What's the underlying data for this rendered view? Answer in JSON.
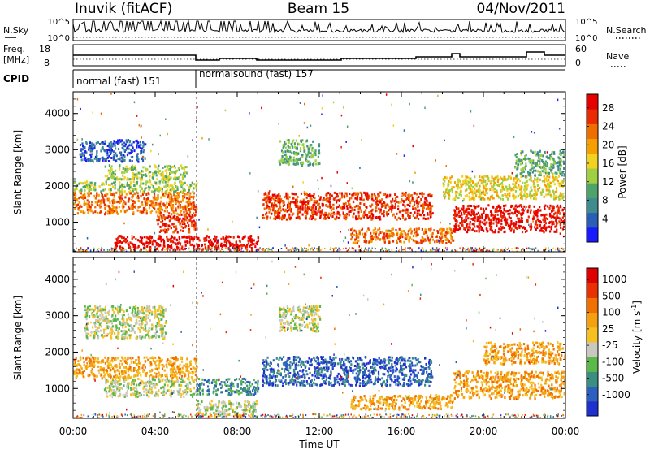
{
  "header": {
    "station": "Inuvik (fitACF)",
    "beam": "Beam 15",
    "date": "04/Nov/2011"
  },
  "strip_labels": {
    "nsky": "N.Sky",
    "nsky_ticks": [
      "10^5",
      "10^0"
    ],
    "nsearch": "N.Search",
    "nsearch_ticks": [
      "10^5",
      "10^0"
    ],
    "freq_l1": "Freq.",
    "freq_l2": "[MHz]",
    "freq_ticks": [
      "18",
      "8"
    ],
    "nave": "Nave",
    "nave_ticks": [
      "60",
      "0"
    ],
    "cpid": "CPID",
    "cpid_segments": [
      {
        "label": "normal (fast) 151",
        "start_hour": 0,
        "end_hour": 6
      },
      {
        "label": "normalsound (fast) 157",
        "start_hour": 6,
        "end_hour": 24
      }
    ]
  },
  "time_axis": {
    "label": "Time UT",
    "ticks": [
      "00:00",
      "04:00",
      "08:00",
      "12:00",
      "16:00",
      "20:00",
      "00:00"
    ]
  },
  "chart_data": [
    {
      "type": "heatmap",
      "panel": "power",
      "ylabel": "Slant Range [km]",
      "xlim": [
        0,
        24
      ],
      "ylim": [
        180,
        4600
      ],
      "yticks": [
        1000,
        2000,
        3000,
        4000
      ],
      "colorbar": {
        "label": "Power [dB]",
        "ticks": [
          "4",
          "8",
          "12",
          "16",
          "20",
          "24",
          "28"
        ],
        "colors": [
          "#1a1aff",
          "#2b5fb5",
          "#3f8c8f",
          "#4ea36a",
          "#9fd042",
          "#f3d21f",
          "#f5a000",
          "#f06d00",
          "#ea2a00",
          "#e60000"
        ]
      },
      "regions": [
        {
          "t0": 0.0,
          "t1": 6.0,
          "r0": 1250,
          "r1": 1850,
          "level": 7
        },
        {
          "t0": 0.0,
          "t1": 6.0,
          "r0": 1850,
          "r1": 2150,
          "level": 4
        },
        {
          "t0": 1.5,
          "t1": 5.5,
          "r0": 2200,
          "r1": 2600,
          "level": 4
        },
        {
          "t0": 0.3,
          "t1": 3.5,
          "r0": 2700,
          "r1": 3300,
          "level": 1
        },
        {
          "t0": 4.0,
          "t1": 6.0,
          "r0": 750,
          "r1": 1250,
          "level": 8
        },
        {
          "t0": 2.0,
          "t1": 9.0,
          "r0": 250,
          "r1": 650,
          "level": 9
        },
        {
          "t0": 9.2,
          "t1": 17.5,
          "r0": 1100,
          "r1": 1850,
          "level": 8
        },
        {
          "t0": 10.0,
          "t1": 12.0,
          "r0": 2600,
          "r1": 3300,
          "level": 3
        },
        {
          "t0": 13.5,
          "t1": 18.5,
          "r0": 450,
          "r1": 850,
          "level": 7
        },
        {
          "t0": 18.5,
          "t1": 24.0,
          "r0": 750,
          "r1": 1500,
          "level": 9
        },
        {
          "t0": 18.0,
          "t1": 24.0,
          "r0": 1650,
          "r1": 2300,
          "level": 5
        },
        {
          "t0": 21.5,
          "t1": 24.0,
          "r0": 2300,
          "r1": 3000,
          "level": 3
        }
      ]
    },
    {
      "type": "heatmap",
      "panel": "velocity",
      "ylabel": "Slant Range [km]",
      "xlim": [
        0,
        24
      ],
      "ylim": [
        180,
        4600
      ],
      "yticks": [
        1000,
        2000,
        3000,
        4000
      ],
      "colorbar": {
        "label": "Velocity [m s",
        "label_exponent": "-1",
        "label_close": "]",
        "ticks": [
          "1000",
          "500",
          "100",
          "25",
          "-25",
          "-100",
          "-500",
          "-1000"
        ],
        "colors": [
          "#1f2fd0",
          "#2b60c0",
          "#3a8f80",
          "#5cb84a",
          "#c8c8c0",
          "#f5c020",
          "#f5a010",
          "#f07000",
          "#e83000",
          "#e00000"
        ]
      },
      "regions": [
        {
          "t0": 0.0,
          "t1": 6.0,
          "r0": 1300,
          "r1": 1900,
          "level": 6
        },
        {
          "t0": 0.5,
          "t1": 4.5,
          "r0": 2400,
          "r1": 3300,
          "level": 4
        },
        {
          "t0": 1.5,
          "t1": 6.0,
          "r0": 800,
          "r1": 1300,
          "level": 4
        },
        {
          "t0": 6.0,
          "t1": 9.0,
          "r0": 250,
          "r1": 700,
          "level": 4
        },
        {
          "t0": 6.0,
          "t1": 9.0,
          "r0": 850,
          "r1": 1300,
          "level": 2
        },
        {
          "t0": 9.2,
          "t1": 17.5,
          "r0": 1100,
          "r1": 1900,
          "level": 1
        },
        {
          "t0": 13.5,
          "t1": 18.5,
          "r0": 450,
          "r1": 850,
          "level": 6
        },
        {
          "t0": 18.5,
          "t1": 24.0,
          "r0": 750,
          "r1": 1500,
          "level": 6
        },
        {
          "t0": 20.0,
          "t1": 24.0,
          "r0": 1700,
          "r1": 2300,
          "level": 6
        },
        {
          "t0": 10.0,
          "t1": 12.0,
          "r0": 2600,
          "r1": 3300,
          "level": 4
        }
      ]
    }
  ]
}
